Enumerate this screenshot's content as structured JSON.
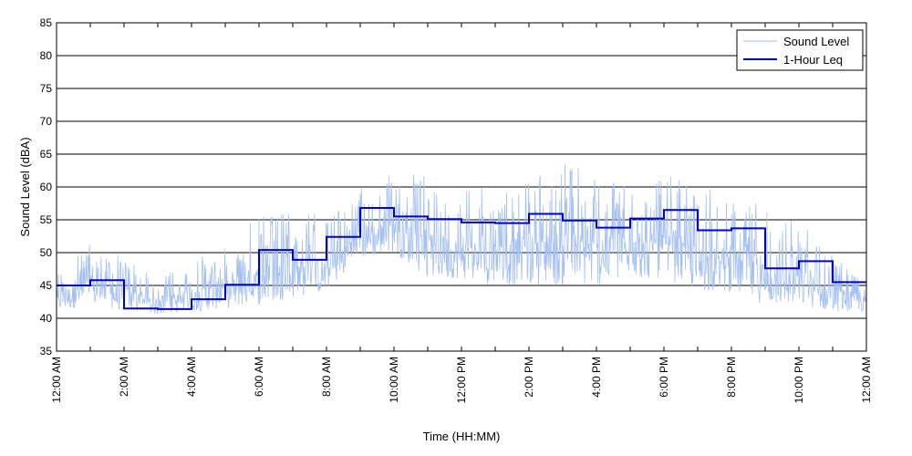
{
  "chart_data": {
    "type": "line",
    "title": "",
    "xlabel": "Time (HH:MM)",
    "ylabel": "Sound Level (dBA)",
    "xlim": [
      0,
      24
    ],
    "ylim": [
      35,
      85
    ],
    "y_ticks": [
      35,
      40,
      45,
      50,
      55,
      60,
      65,
      70,
      75,
      80,
      85
    ],
    "x_ticks": [
      {
        "hour": 0,
        "label": "12:00 AM"
      },
      {
        "hour": 2,
        "label": "2:00 AM"
      },
      {
        "hour": 4,
        "label": "4:00 AM"
      },
      {
        "hour": 6,
        "label": "6:00 AM"
      },
      {
        "hour": 8,
        "label": "8:00 AM"
      },
      {
        "hour": 10,
        "label": "10:00 AM"
      },
      {
        "hour": 12,
        "label": "12:00 PM"
      },
      {
        "hour": 14,
        "label": "2:00 PM"
      },
      {
        "hour": 16,
        "label": "4:00 PM"
      },
      {
        "hour": 18,
        "label": "6:00 PM"
      },
      {
        "hour": 20,
        "label": "8:00 PM"
      },
      {
        "hour": 22,
        "label": "10:00 PM"
      },
      {
        "hour": 24,
        "label": "12:00 AM"
      }
    ],
    "grid": {
      "horizontal": true,
      "vertical": false
    },
    "legend_position": "top-right",
    "series": [
      {
        "name": "Sound Level",
        "style": "thin-line",
        "color": "#a4bff2",
        "description_envelope": {
          "hour": [
            0,
            1,
            2,
            3,
            4,
            5,
            6,
            7,
            8,
            9,
            10,
            11,
            12,
            13,
            14,
            15,
            16,
            17,
            18,
            19,
            20,
            21,
            22,
            23,
            24
          ],
          "baseline": [
            41,
            42,
            41,
            40.5,
            41,
            41.5,
            42,
            43,
            44,
            49,
            50,
            46,
            46,
            45,
            45,
            45,
            45,
            46,
            46,
            44,
            44,
            42,
            42,
            41,
            41
          ],
          "peak": [
            48,
            52,
            50,
            46,
            49,
            51,
            56,
            56,
            56,
            60,
            62,
            62,
            60,
            60,
            62,
            64,
            62,
            60,
            62,
            60,
            59,
            58,
            55,
            50,
            46
          ]
        }
      },
      {
        "name": "1-Hour Leq",
        "style": "step",
        "color": "#0000cc",
        "hours": [
          0,
          1,
          2,
          3,
          4,
          5,
          6,
          7,
          8,
          9,
          10,
          11,
          12,
          13,
          14,
          15,
          16,
          17,
          18,
          19,
          20,
          21,
          22,
          23
        ],
        "values": [
          45.0,
          45.8,
          41.5,
          41.4,
          42.9,
          45.1,
          50.4,
          48.9,
          52.4,
          56.8,
          55.5,
          55.1,
          54.6,
          54.5,
          55.9,
          54.9,
          53.8,
          55.2,
          56.5,
          53.4,
          53.7,
          47.6,
          48.7,
          45.5
        ]
      }
    ]
  }
}
